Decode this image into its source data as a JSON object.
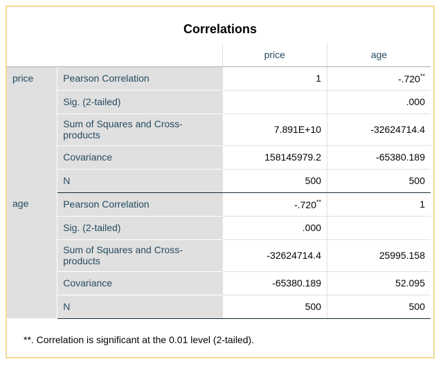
{
  "title": "Correlations",
  "columns": [
    "price",
    "age"
  ],
  "groups": [
    {
      "label": "price",
      "rows": [
        {
          "stat": "Pearson Correlation",
          "values": [
            "1",
            "-.720"
          ],
          "sup": [
            "",
            "**"
          ]
        },
        {
          "stat": "Sig. (2-tailed)",
          "values": [
            "",
            ".000"
          ],
          "sup": [
            "",
            ""
          ]
        },
        {
          "stat": "Sum of Squares and Cross-products",
          "values": [
            "7.891E+10",
            "-32624714.4"
          ],
          "sup": [
            "",
            ""
          ]
        },
        {
          "stat": "Covariance",
          "values": [
            "158145979.2",
            "-65380.189"
          ],
          "sup": [
            "",
            ""
          ]
        },
        {
          "stat": "N",
          "values": [
            "500",
            "500"
          ],
          "sup": [
            "",
            ""
          ]
        }
      ]
    },
    {
      "label": "age",
      "rows": [
        {
          "stat": "Pearson Correlation",
          "values": [
            "-.720",
            "1"
          ],
          "sup": [
            "**",
            ""
          ]
        },
        {
          "stat": "Sig. (2-tailed)",
          "values": [
            ".000",
            ""
          ],
          "sup": [
            "",
            ""
          ]
        },
        {
          "stat": "Sum of Squares and Cross-products",
          "values": [
            "-32624714.4",
            "25995.158"
          ],
          "sup": [
            "",
            ""
          ]
        },
        {
          "stat": "Covariance",
          "values": [
            "-65380.189",
            "52.095"
          ],
          "sup": [
            "",
            ""
          ]
        },
        {
          "stat": "N",
          "values": [
            "500",
            "500"
          ],
          "sup": [
            "",
            ""
          ]
        }
      ]
    }
  ],
  "footnote": "**. Correlation is significant at the 0.01 level (2-tailed).",
  "colors": {
    "border": "#f3da90",
    "rowhead_bg": "#e0e0e0",
    "header_text": "#264a60"
  }
}
